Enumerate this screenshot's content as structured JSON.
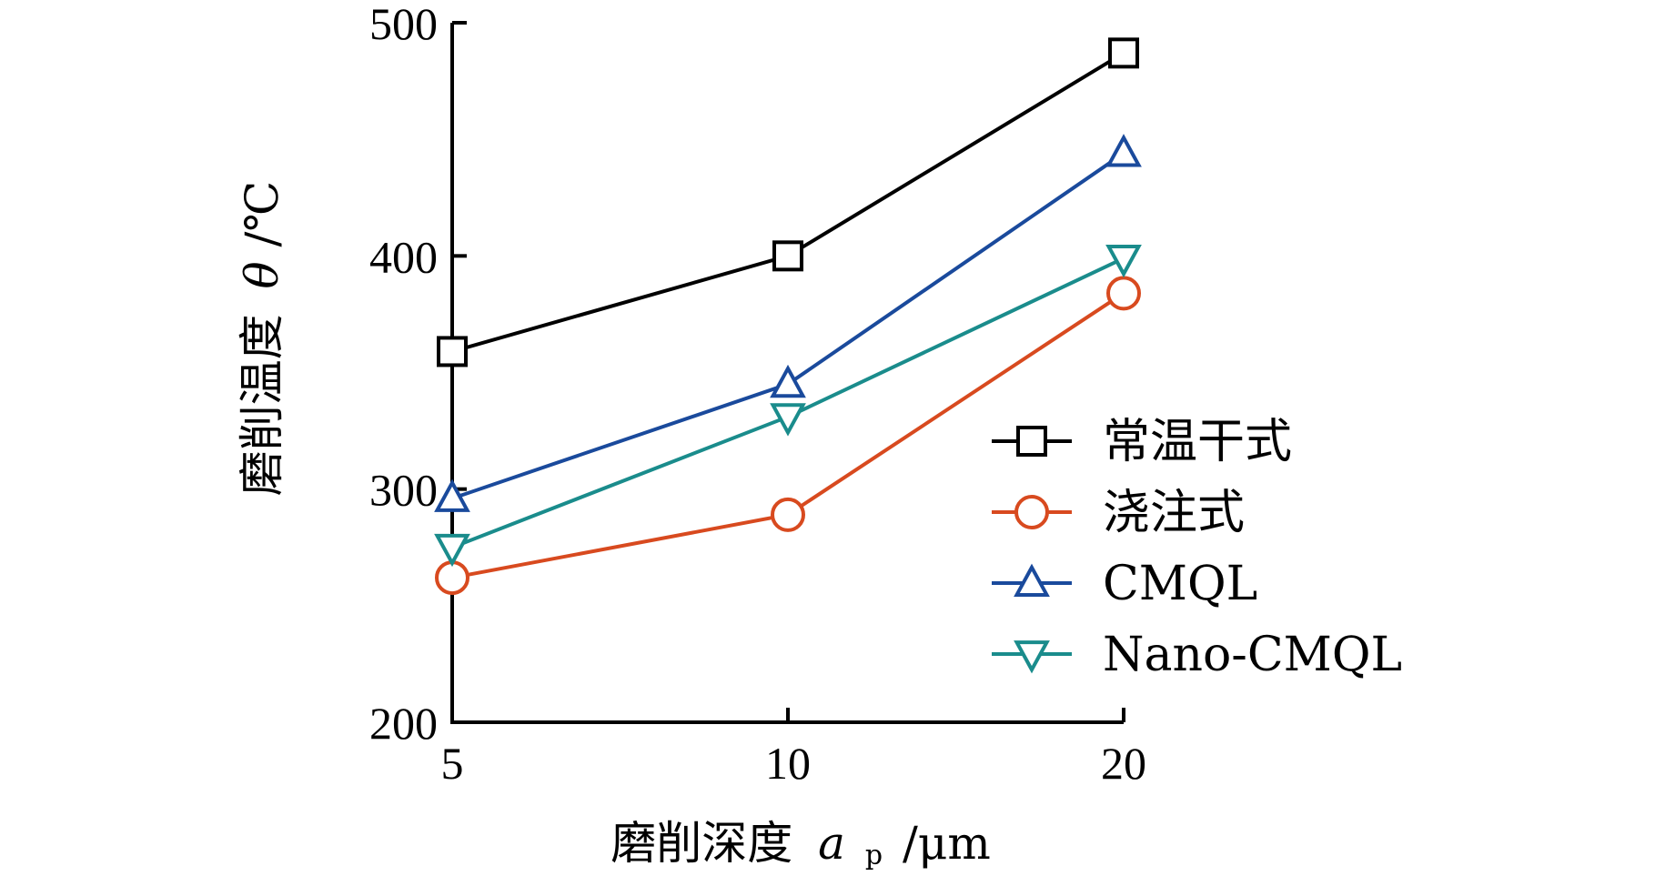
{
  "chart_data": {
    "type": "line",
    "x": [
      5,
      10,
      20
    ],
    "x_tick_labels": [
      "5",
      "10",
      "20"
    ],
    "y_ticks": [
      200,
      300,
      400,
      500
    ],
    "y_tick_labels": [
      "200",
      "300",
      "400",
      "500"
    ],
    "ylim": [
      200,
      500
    ],
    "xlabel_main": "磨削深度",
    "xlabel_var": "a",
    "xlabel_sub": "p",
    "xlabel_unit": "/μm",
    "ylabel_main": "磨削温度",
    "ylabel_var": "θ",
    "ylabel_unit": "/℃",
    "grid": false,
    "legend_position": "right",
    "series": [
      {
        "name": "常温干式",
        "color": "#000000",
        "marker": "square",
        "values": [
          359,
          400,
          487
        ]
      },
      {
        "name": "浇注式",
        "color": "#d84a1f",
        "marker": "circle",
        "values": [
          262,
          289,
          384
        ]
      },
      {
        "name": "CMQL",
        "color": "#1a4a9c",
        "marker": "triangle-up",
        "values": [
          296,
          345,
          444
        ]
      },
      {
        "name": "Nano-CMQL",
        "color": "#1a8c8c",
        "marker": "triangle-down",
        "values": [
          275,
          331,
          399
        ]
      }
    ]
  }
}
